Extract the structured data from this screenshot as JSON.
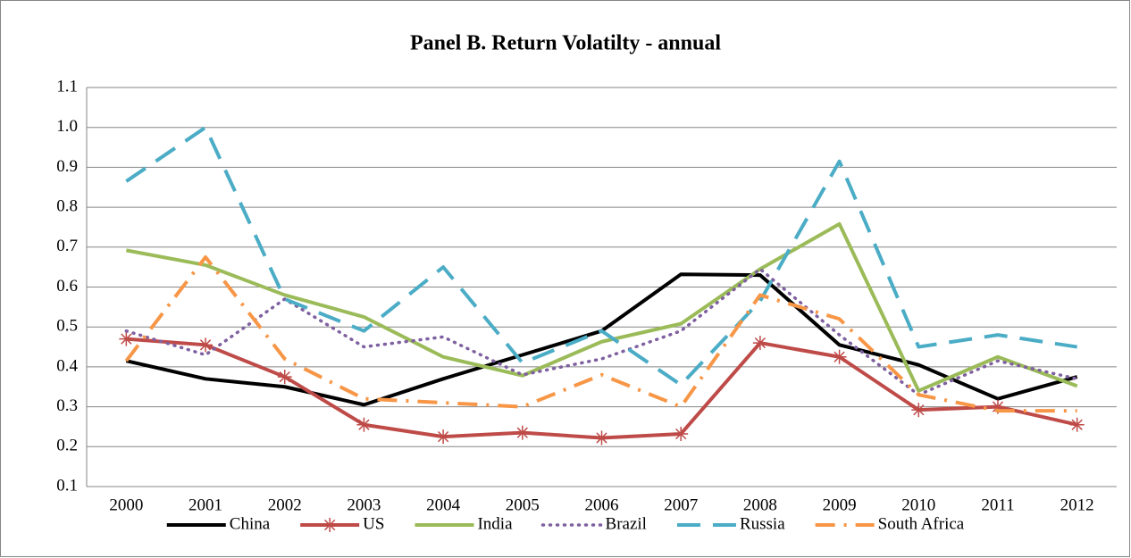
{
  "chart_data": {
    "type": "line",
    "title": "Panel B. Return Volatilty - annual",
    "categories": [
      "2000",
      "2001",
      "2002",
      "2003",
      "2004",
      "2005",
      "2006",
      "2007",
      "2008",
      "2009",
      "2010",
      "2011",
      "2012"
    ],
    "ylim": [
      0.1,
      1.1
    ],
    "yticks": [
      0.1,
      0.2,
      0.3,
      0.4,
      0.5,
      0.6,
      0.7,
      0.8,
      0.9,
      {
        "value": 1,
        "label": "1.0"
      },
      1.1
    ],
    "grid": true,
    "legend": "bottom",
    "series": [
      {
        "name": "China",
        "color": "#000000",
        "line_style": "solid",
        "values": [
          0.415,
          0.37,
          0.35,
          0.305,
          0.37,
          0.43,
          0.49,
          0.632,
          0.63,
          0.455,
          0.405,
          0.32,
          0.375
        ]
      },
      {
        "name": "US",
        "color": "#be4b48",
        "line_style": "solid",
        "marker": "star",
        "values": [
          0.47,
          0.455,
          0.375,
          0.255,
          0.225,
          0.235,
          0.222,
          0.232,
          0.46,
          0.425,
          0.292,
          0.3,
          0.255
        ]
      },
      {
        "name": "India",
        "color": "#9bbb59",
        "line_style": "solid",
        "values": [
          0.692,
          0.655,
          0.58,
          0.525,
          0.425,
          0.378,
          0.463,
          0.508,
          0.645,
          0.758,
          0.34,
          0.425,
          0.352
        ]
      },
      {
        "name": "Brazil",
        "color": "#7f60a0",
        "line_style": "dotted",
        "values": [
          0.49,
          0.43,
          0.57,
          0.45,
          0.475,
          0.38,
          0.42,
          0.49,
          0.645,
          0.48,
          0.33,
          0.415,
          0.37
        ]
      },
      {
        "name": "Russia",
        "color": "#4bacc6",
        "line_style": "dashed",
        "values": [
          0.865,
          1.0,
          0.57,
          0.49,
          0.65,
          0.41,
          0.49,
          0.355,
          0.565,
          0.915,
          0.45,
          0.48,
          0.45
        ]
      },
      {
        "name": "South Africa",
        "color": "#f79646",
        "line_style": "dashdot",
        "values": [
          0.415,
          0.675,
          0.42,
          0.32,
          0.31,
          0.3,
          0.38,
          0.3,
          0.58,
          0.52,
          0.33,
          0.29,
          0.29
        ]
      }
    ]
  }
}
